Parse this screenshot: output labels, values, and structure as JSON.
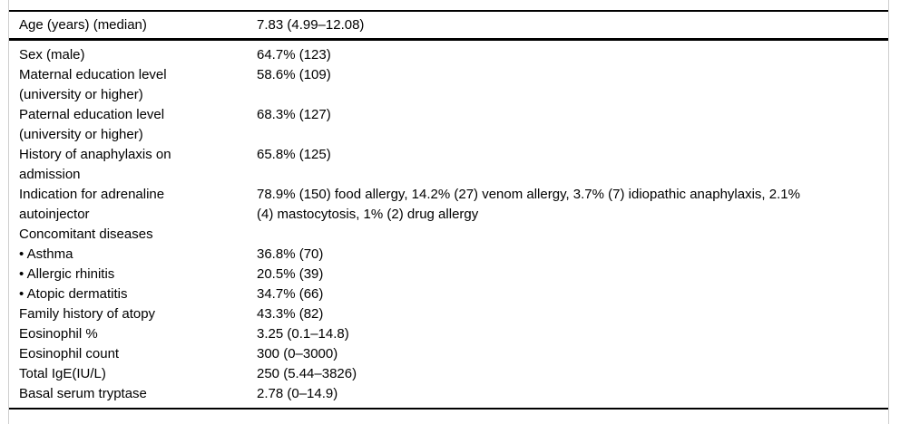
{
  "table": {
    "style": {
      "rule_color": "#000000",
      "frame_color": "#cfcfcf",
      "text_color": "#000000",
      "background": "#ffffff"
    },
    "header_row": {
      "label": "Age (years) (median)",
      "value": "7.83 (4.99–12.08)"
    },
    "rows": [
      {
        "label": "Sex (male)",
        "value": "64.7% (123)"
      },
      {
        "label": "Maternal education level\n(university or higher)",
        "value": "58.6% (109)"
      },
      {
        "label": "Paternal education level\n(university or higher)",
        "value": "68.3% (127)"
      },
      {
        "label": "History of anaphylaxis on\nadmission",
        "value": "65.8% (125)"
      },
      {
        "label": "Indication for adrenaline\nautoinjector",
        "value": "78.9% (150) food allergy, 14.2% (27) venom allergy, 3.7% (7) idiopathic anaphylaxis, 2.1%\n(4) mastocytosis, 1% (2) drug allergy"
      },
      {
        "label": "Concomitant diseases",
        "value": ""
      },
      {
        "label": "• Asthma",
        "value": "36.8% (70)"
      },
      {
        "label": "• Allergic rhinitis",
        "value": "20.5% (39)"
      },
      {
        "label": "• Atopic dermatitis",
        "value": "34.7% (66)"
      },
      {
        "label": "Family history of atopy",
        "value": "43.3% (82)"
      },
      {
        "label": "Eosinophil %",
        "value": "3.25 (0.1–14.8)"
      },
      {
        "label": "Eosinophil count",
        "value": "300 (0–3000)"
      },
      {
        "label": "Total IgE(IU/L)",
        "value": "250 (5.44–3826)"
      },
      {
        "label": "Basal serum tryptase",
        "value": "2.78 (0–14.9)"
      }
    ]
  }
}
